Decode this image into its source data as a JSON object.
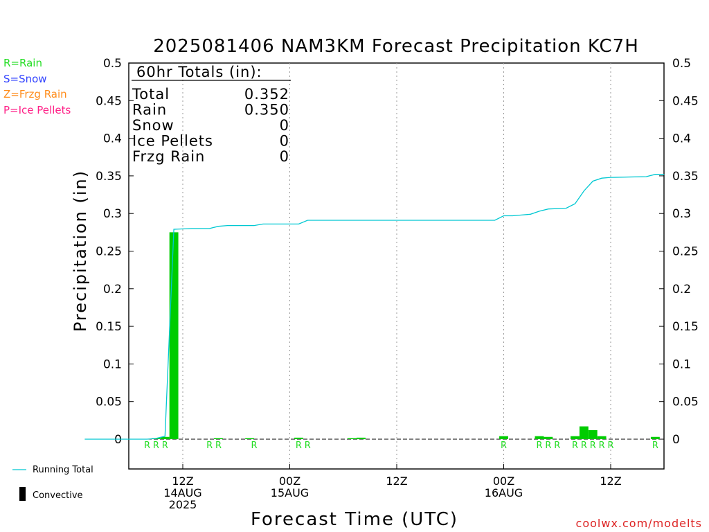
{
  "title": "2025081406 NAM3KM Forecast Precipitation KC7H",
  "legend_types": [
    {
      "label": "R=Rain",
      "color": "#22dd22"
    },
    {
      "label": "S=Snow",
      "color": "#3344ff"
    },
    {
      "label": "Z=Frzg Rain",
      "color": "#ff8c1a"
    },
    {
      "label": "P=Ice Pellets",
      "color": "#ff2288"
    }
  ],
  "totals": {
    "header": "60hr Totals (in):",
    "rows": [
      {
        "label": "Total",
        "value": "0.352"
      },
      {
        "label": "Rain",
        "value": "0.350"
      },
      {
        "label": "Snow",
        "value": "0"
      },
      {
        "label": "Ice Pellets",
        "value": "0"
      },
      {
        "label": "Frzg Rain",
        "value": "0"
      }
    ]
  },
  "legend_bottom": {
    "running_total": "Running Total",
    "convective": "Convective"
  },
  "credit": "coolwx.com/modelts",
  "colors": {
    "bars": "#00cc00",
    "running_total": "#00c8d2",
    "rain_marker": "#22dd22",
    "credit": "#dd2222"
  },
  "chart_data": {
    "type": "bar",
    "xlabel": "Forecast Time (UTC)",
    "ylabel": "Precipitation (in)",
    "ylim": [
      -0.04,
      0.5
    ],
    "y_ticks": [
      "0",
      "0.05",
      "0.1",
      "0.15",
      "0.2",
      "0.25",
      "0.3",
      "0.35",
      "0.4",
      "0.45",
      "0.5"
    ],
    "x_ticks": [
      {
        "hour": 12,
        "lines": [
          "12Z",
          "14AUG",
          "2025"
        ]
      },
      {
        "hour": 24,
        "lines": [
          "00Z",
          "15AUG"
        ]
      },
      {
        "hour": 36,
        "lines": [
          "12Z"
        ]
      },
      {
        "hour": 48,
        "lines": [
          "00Z",
          "16AUG"
        ]
      },
      {
        "hour": 60,
        "lines": [
          "12Z"
        ]
      }
    ],
    "bar_width_hours": 1,
    "bars": [
      {
        "hour": 9,
        "value": 0.001
      },
      {
        "hour": 10,
        "value": 0.003
      },
      {
        "hour": 11,
        "value": 0.275
      },
      {
        "hour": 16,
        "value": 0.001
      },
      {
        "hour": 19.5,
        "value": 0.001
      },
      {
        "hour": 25,
        "value": 0.002
      },
      {
        "hour": 31,
        "value": 0.001
      },
      {
        "hour": 32,
        "value": 0.002
      },
      {
        "hour": 48,
        "value": 0.004
      },
      {
        "hour": 52,
        "value": 0.004
      },
      {
        "hour": 53,
        "value": 0.003
      },
      {
        "hour": 56,
        "value": 0.004
      },
      {
        "hour": 57,
        "value": 0.017
      },
      {
        "hour": 58,
        "value": 0.012
      },
      {
        "hour": 59,
        "value": 0.004
      },
      {
        "hour": 65,
        "value": 0.003
      }
    ],
    "type_markers": [
      {
        "hour": 8,
        "type": "R"
      },
      {
        "hour": 9,
        "type": "R"
      },
      {
        "hour": 10,
        "type": "R"
      },
      {
        "hour": 15,
        "type": "R"
      },
      {
        "hour": 16,
        "type": "R"
      },
      {
        "hour": 20,
        "type": "R"
      },
      {
        "hour": 25,
        "type": "R"
      },
      {
        "hour": 26,
        "type": "R"
      },
      {
        "hour": 48,
        "type": "R"
      },
      {
        "hour": 52,
        "type": "R"
      },
      {
        "hour": 53,
        "type": "R"
      },
      {
        "hour": 54,
        "type": "R"
      },
      {
        "hour": 56,
        "type": "R"
      },
      {
        "hour": 57,
        "type": "R"
      },
      {
        "hour": 58,
        "type": "R"
      },
      {
        "hour": 59,
        "type": "R"
      },
      {
        "hour": 60,
        "type": "R"
      },
      {
        "hour": 65,
        "type": "R"
      }
    ],
    "running_total": {
      "name": "Running Total",
      "points": [
        [
          1,
          0.0
        ],
        [
          8,
          0.0
        ],
        [
          9,
          0.001
        ],
        [
          10,
          0.004
        ],
        [
          11,
          0.279
        ],
        [
          13,
          0.28
        ],
        [
          14,
          0.28
        ],
        [
          15,
          0.28
        ],
        [
          16,
          0.283
        ],
        [
          17,
          0.284
        ],
        [
          18,
          0.284
        ],
        [
          19,
          0.284
        ],
        [
          20,
          0.284
        ],
        [
          21,
          0.286
        ],
        [
          25,
          0.286
        ],
        [
          26,
          0.291
        ],
        [
          47,
          0.291
        ],
        [
          48,
          0.297
        ],
        [
          49,
          0.297
        ],
        [
          50,
          0.298
        ],
        [
          51,
          0.299
        ],
        [
          52,
          0.303
        ],
        [
          53,
          0.306
        ],
        [
          55,
          0.307
        ],
        [
          56,
          0.313
        ],
        [
          57,
          0.33
        ],
        [
          58,
          0.343
        ],
        [
          59,
          0.347
        ],
        [
          60,
          0.348
        ],
        [
          64,
          0.349
        ],
        [
          65,
          0.352
        ],
        [
          66,
          0.352
        ]
      ]
    }
  }
}
